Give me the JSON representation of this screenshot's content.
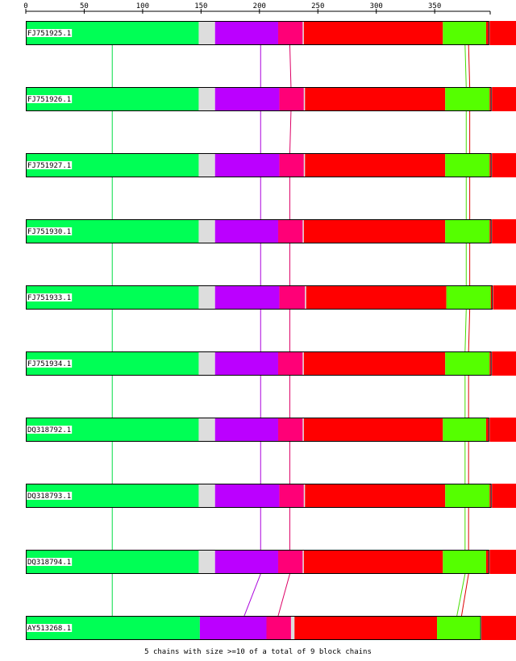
{
  "ruler": {
    "ticks": [
      0,
      50,
      100,
      150,
      200,
      250,
      300,
      350
    ]
  },
  "footer": "5 chains with size >=10 of a total of 9 block chains",
  "colors": {
    "block1": "#00ff55",
    "gap": "#dddddd",
    "block2": "#bb00ff",
    "block3": "#ff0077",
    "block4": "#ff0000",
    "block5": "#55ff00",
    "block6": "#ff0000",
    "link1": "#00dd44",
    "link2": "#aa00dd",
    "link3": "#dd0066",
    "link5": "#44dd00",
    "link4": "#dd0000"
  },
  "sequences": [
    {
      "name": "FJ751925.1",
      "blocks": [
        [
          0,
          148,
          "block1"
        ],
        [
          148,
          162,
          "gap"
        ],
        [
          162,
          216,
          "block2"
        ],
        [
          216,
          237,
          "block3"
        ],
        [
          237,
          238,
          "gap"
        ],
        [
          238,
          357,
          "block4"
        ],
        [
          357,
          394,
          "block5"
        ],
        [
          394,
          396,
          "block4"
        ],
        [
          397,
          420,
          "block6"
        ]
      ]
    },
    {
      "name": "FJ751926.1",
      "blocks": [
        [
          0,
          148,
          "block1"
        ],
        [
          148,
          162,
          "gap"
        ],
        [
          162,
          217,
          "block2"
        ],
        [
          217,
          238,
          "block3"
        ],
        [
          238,
          239,
          "gap"
        ],
        [
          239,
          359,
          "block4"
        ],
        [
          359,
          397,
          "block5"
        ],
        [
          397,
          398,
          "block4"
        ],
        [
          399,
          420,
          "block6"
        ]
      ]
    },
    {
      "name": "FJ751927.1",
      "blocks": [
        [
          0,
          148,
          "block1"
        ],
        [
          148,
          162,
          "gap"
        ],
        [
          162,
          217,
          "block2"
        ],
        [
          217,
          238,
          "block3"
        ],
        [
          238,
          239,
          "gap"
        ],
        [
          239,
          359,
          "block4"
        ],
        [
          359,
          397,
          "block5"
        ],
        [
          397,
          398,
          "block4"
        ],
        [
          399,
          420,
          "block6"
        ]
      ]
    },
    {
      "name": "FJ751930.1",
      "blocks": [
        [
          0,
          148,
          "block1"
        ],
        [
          148,
          162,
          "gap"
        ],
        [
          162,
          216,
          "block2"
        ],
        [
          216,
          237,
          "block3"
        ],
        [
          237,
          238,
          "gap"
        ],
        [
          238,
          359,
          "block4"
        ],
        [
          359,
          397,
          "block5"
        ],
        [
          397,
          398,
          "block4"
        ],
        [
          399,
          420,
          "block6"
        ]
      ]
    },
    {
      "name": "FJ751933.1",
      "blocks": [
        [
          0,
          148,
          "block1"
        ],
        [
          148,
          162,
          "gap"
        ],
        [
          162,
          217,
          "block2"
        ],
        [
          217,
          239,
          "block3"
        ],
        [
          239,
          240,
          "gap"
        ],
        [
          240,
          360,
          "block4"
        ],
        [
          360,
          398,
          "block5"
        ],
        [
          398,
          399,
          "block4"
        ],
        [
          400,
          420,
          "block6"
        ]
      ]
    },
    {
      "name": "FJ751934.1",
      "blocks": [
        [
          0,
          148,
          "block1"
        ],
        [
          148,
          162,
          "gap"
        ],
        [
          162,
          216,
          "block2"
        ],
        [
          216,
          237,
          "block3"
        ],
        [
          237,
          238,
          "gap"
        ],
        [
          238,
          359,
          "block4"
        ],
        [
          359,
          397,
          "block5"
        ],
        [
          397,
          398,
          "block4"
        ],
        [
          399,
          420,
          "block6"
        ]
      ]
    },
    {
      "name": "DQ318792.1",
      "blocks": [
        [
          0,
          148,
          "block1"
        ],
        [
          148,
          162,
          "gap"
        ],
        [
          162,
          216,
          "block2"
        ],
        [
          216,
          237,
          "block3"
        ],
        [
          237,
          238,
          "gap"
        ],
        [
          238,
          357,
          "block4"
        ],
        [
          357,
          394,
          "block5"
        ],
        [
          394,
          396,
          "block4"
        ],
        [
          397,
          420,
          "block6"
        ]
      ]
    },
    {
      "name": "DQ318793.1",
      "blocks": [
        [
          0,
          148,
          "block1"
        ],
        [
          148,
          162,
          "gap"
        ],
        [
          162,
          217,
          "block2"
        ],
        [
          217,
          238,
          "block3"
        ],
        [
          238,
          239,
          "gap"
        ],
        [
          239,
          359,
          "block4"
        ],
        [
          359,
          397,
          "block5"
        ],
        [
          397,
          398,
          "block4"
        ],
        [
          399,
          420,
          "block6"
        ]
      ]
    },
    {
      "name": "DQ318794.1",
      "blocks": [
        [
          0,
          148,
          "block1"
        ],
        [
          148,
          162,
          "gap"
        ],
        [
          162,
          216,
          "block2"
        ],
        [
          216,
          237,
          "block3"
        ],
        [
          237,
          238,
          "gap"
        ],
        [
          238,
          357,
          "block4"
        ],
        [
          357,
          394,
          "block5"
        ],
        [
          394,
          396,
          "block4"
        ],
        [
          397,
          420,
          "block6"
        ]
      ]
    },
    {
      "name": "AY513268.1",
      "blocks": [
        [
          0,
          149,
          "block1"
        ],
        [
          149,
          206,
          "block2"
        ],
        [
          206,
          227,
          "block3"
        ],
        [
          227,
          230,
          "gap"
        ],
        [
          230,
          352,
          "block4"
        ],
        [
          352,
          389,
          "block5"
        ],
        [
          390,
          420,
          "block6"
        ]
      ]
    }
  ],
  "links": [
    {
      "color": "link1",
      "pos": [
        74,
        74,
        74,
        74,
        74,
        74,
        74,
        74,
        74,
        74
      ]
    },
    {
      "color": "link2",
      "pos": [
        201,
        201,
        201,
        201,
        201,
        201,
        201,
        201,
        201,
        187
      ]
    },
    {
      "color": "link3",
      "pos": [
        226,
        227,
        226,
        226,
        226,
        226,
        226,
        226,
        226,
        216
      ]
    },
    {
      "color": "link5",
      "pos": [
        376,
        377,
        377,
        377,
        377,
        376,
        376,
        376,
        376,
        369
      ]
    },
    {
      "color": "link4",
      "pos": [
        379,
        380,
        380,
        380,
        380,
        379,
        379,
        379,
        379,
        373
      ]
    }
  ]
}
